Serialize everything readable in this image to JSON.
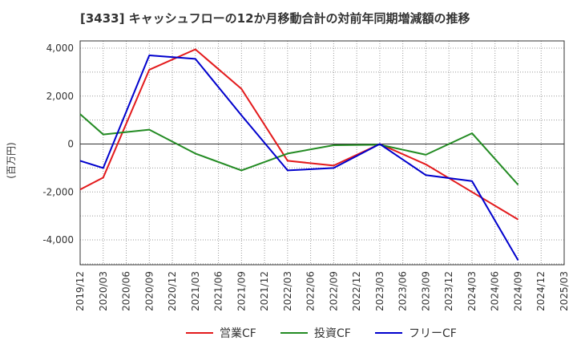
{
  "chart_data": {
    "type": "line",
    "title": "[3433]  キャッシュフローの12か月移動合計の対前年同期増減額の推移",
    "ylabel": "(百万円)",
    "xlabel": "",
    "ylim": [
      -5000,
      4200
    ],
    "yticks": [
      4000,
      2000,
      0,
      -2000,
      -4000
    ],
    "ytick_labels": [
      "4,000",
      "2,000",
      "0",
      "-2,000",
      "-4,000"
    ],
    "categories": [
      "2019/12",
      "2020/03",
      "2020/06",
      "2020/09",
      "2020/12",
      "2021/03",
      "2021/06",
      "2021/09",
      "2021/12",
      "2022/03",
      "2022/06",
      "2022/09",
      "2022/12",
      "2023/03",
      "2023/06",
      "2023/09",
      "2023/12",
      "2024/03",
      "2024/06",
      "2024/09",
      "2024/12",
      "2025/03"
    ],
    "grid": true,
    "legend_position": "bottom",
    "series": [
      {
        "name": "営業CF",
        "color": "#e31a1c",
        "points": [
          [
            "2019/12",
            -1900
          ],
          [
            "2020/03",
            -1400
          ],
          [
            "2020/09",
            3100
          ],
          [
            "2021/03",
            3950
          ],
          [
            "2021/09",
            2300
          ],
          [
            "2022/03",
            -700
          ],
          [
            "2022/09",
            -900
          ],
          [
            "2023/03",
            0
          ],
          [
            "2023/09",
            -850
          ],
          [
            "2024/03",
            -2000
          ],
          [
            "2024/09",
            -3150
          ]
        ]
      },
      {
        "name": "投資CF",
        "color": "#238b23",
        "points": [
          [
            "2019/12",
            1250
          ],
          [
            "2020/03",
            400
          ],
          [
            "2020/09",
            600
          ],
          [
            "2021/03",
            -400
          ],
          [
            "2021/09",
            -1100
          ],
          [
            "2022/03",
            -400
          ],
          [
            "2022/09",
            -50
          ],
          [
            "2023/03",
            -30
          ],
          [
            "2023/09",
            -450
          ],
          [
            "2024/03",
            450
          ],
          [
            "2024/09",
            -1700
          ]
        ]
      },
      {
        "name": "フリーCF",
        "color": "#0000cd",
        "points": [
          [
            "2019/12",
            -700
          ],
          [
            "2020/03",
            -1000
          ],
          [
            "2020/09",
            3700
          ],
          [
            "2021/03",
            3550
          ],
          [
            "2021/09",
            1200
          ],
          [
            "2022/03",
            -1100
          ],
          [
            "2022/09",
            -1000
          ],
          [
            "2023/03",
            0
          ],
          [
            "2023/09",
            -1300
          ],
          [
            "2024/03",
            -1550
          ],
          [
            "2024/09",
            -4850
          ]
        ]
      }
    ]
  }
}
